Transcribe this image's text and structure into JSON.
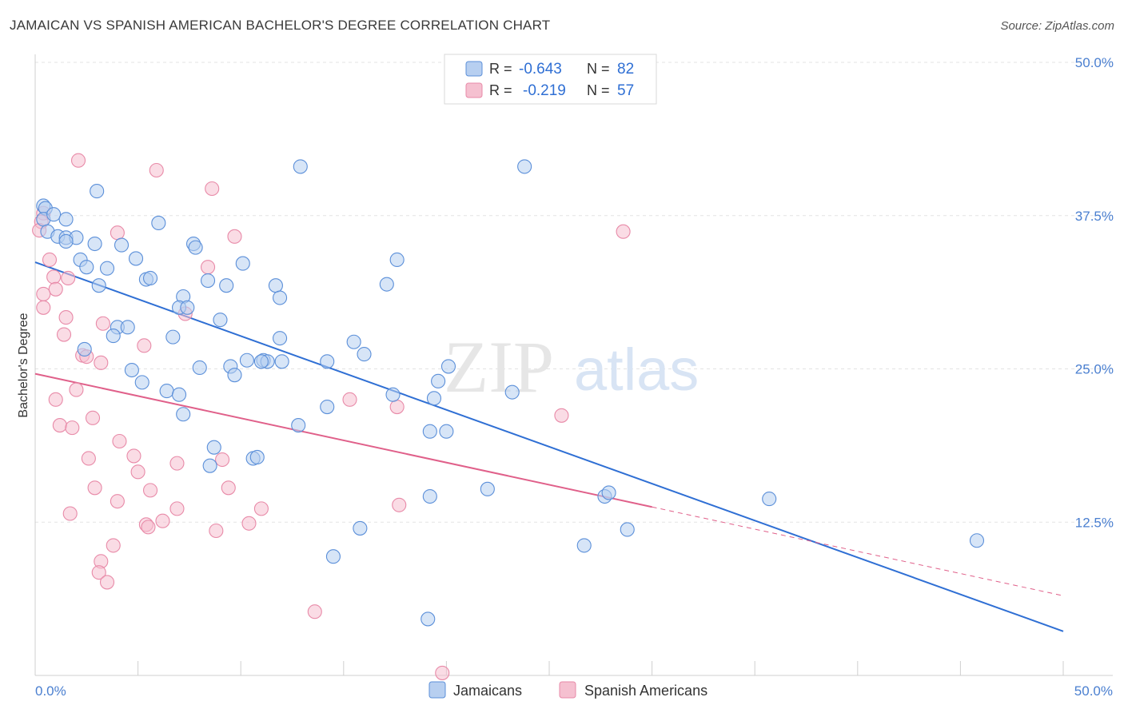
{
  "title": "JAMAICAN VS SPANISH AMERICAN BACHELOR'S DEGREE CORRELATION CHART",
  "source": "Source: ZipAtlas.com",
  "watermark": {
    "part1": "ZIP",
    "part2": "atlas"
  },
  "colors": {
    "blue": "#5b8fd9",
    "blue_fill": "#b7cff0",
    "blue_line": "#2f6fd4",
    "pink": "#e88aa8",
    "pink_fill": "#f5c0d0",
    "pink_line": "#e0608a",
    "axis_text": "#4a7fd0",
    "grid": "#e3e3e3"
  },
  "legend": {
    "rows": [
      {
        "r_label": "R =",
        "r_value": "-0.643",
        "n_label": "N =",
        "n_value": "82"
      },
      {
        "r_label": "R =",
        "r_value": "-0.219",
        "n_label": "N =",
        "n_value": "57"
      }
    ]
  },
  "bottom_legend": [
    {
      "label": "Jamaicans"
    },
    {
      "label": "Spanish Americans"
    }
  ],
  "chart_data": {
    "type": "scatter",
    "title": "JAMAICAN VS SPANISH AMERICAN BACHELOR'S DEGREE CORRELATION CHART",
    "xlabel": "",
    "ylabel": "Bachelor's Degree",
    "xlim": [
      0,
      50
    ],
    "ylim": [
      0,
      50
    ],
    "x_tick_labels": [
      "0.0%",
      "50.0%"
    ],
    "y_ticks": [
      12.5,
      25.0,
      37.5,
      50.0
    ],
    "y_tick_labels": [
      "12.5%",
      "25.0%",
      "37.5%",
      "50.0%"
    ],
    "grid": true,
    "legend_position": "top-center",
    "series": [
      {
        "name": "Jamaicans",
        "trend": {
          "x0": 0,
          "y0": 33.7,
          "x1": 50,
          "y1": 3.6,
          "solid_until": 50
        },
        "points": [
          [
            0.4,
            38.3
          ],
          [
            0.5,
            38.1
          ],
          [
            0.4,
            37.2
          ],
          [
            0.9,
            37.6
          ],
          [
            1.5,
            37.2
          ],
          [
            0.6,
            36.2
          ],
          [
            1.1,
            35.8
          ],
          [
            1.5,
            35.7
          ],
          [
            2.0,
            35.7
          ],
          [
            1.5,
            35.4
          ],
          [
            2.9,
            35.2
          ],
          [
            4.2,
            35.1
          ],
          [
            7.7,
            35.2
          ],
          [
            7.8,
            34.9
          ],
          [
            2.2,
            33.9
          ],
          [
            4.9,
            34.0
          ],
          [
            10.1,
            33.6
          ],
          [
            2.5,
            33.3
          ],
          [
            3.5,
            33.2
          ],
          [
            5.4,
            32.3
          ],
          [
            5.6,
            32.4
          ],
          [
            8.4,
            32.2
          ],
          [
            9.3,
            31.8
          ],
          [
            11.7,
            31.8
          ],
          [
            3.1,
            31.8
          ],
          [
            11.9,
            30.8
          ],
          [
            7.2,
            30.9
          ],
          [
            7.0,
            30.0
          ],
          [
            7.4,
            30.0
          ],
          [
            9.0,
            29.0
          ],
          [
            4.0,
            28.4
          ],
          [
            4.5,
            28.4
          ],
          [
            3.8,
            27.7
          ],
          [
            6.7,
            27.6
          ],
          [
            11.9,
            27.5
          ],
          [
            2.4,
            26.6
          ],
          [
            15.5,
            27.2
          ],
          [
            16.0,
            26.2
          ],
          [
            10.3,
            25.7
          ],
          [
            11.1,
            25.7
          ],
          [
            11.3,
            25.6
          ],
          [
            11.0,
            25.6
          ],
          [
            12.0,
            25.6
          ],
          [
            14.2,
            25.6
          ],
          [
            9.5,
            25.2
          ],
          [
            8.0,
            25.1
          ],
          [
            4.7,
            24.9
          ],
          [
            9.7,
            24.5
          ],
          [
            19.6,
            24.0
          ],
          [
            20.1,
            25.2
          ],
          [
            5.2,
            23.9
          ],
          [
            6.4,
            23.2
          ],
          [
            7.0,
            22.9
          ],
          [
            17.4,
            22.9
          ],
          [
            19.4,
            22.6
          ],
          [
            23.2,
            23.1
          ],
          [
            14.2,
            21.9
          ],
          [
            7.2,
            21.3
          ],
          [
            12.8,
            20.4
          ],
          [
            19.2,
            19.9
          ],
          [
            20.0,
            19.9
          ],
          [
            8.7,
            18.6
          ],
          [
            10.6,
            17.7
          ],
          [
            10.8,
            17.8
          ],
          [
            8.5,
            17.1
          ],
          [
            22.0,
            15.2
          ],
          [
            19.2,
            14.6
          ],
          [
            27.7,
            14.6
          ],
          [
            27.9,
            14.9
          ],
          [
            35.7,
            14.4
          ],
          [
            15.8,
            12.0
          ],
          [
            28.8,
            11.9
          ],
          [
            26.7,
            10.6
          ],
          [
            14.5,
            9.7
          ],
          [
            45.8,
            11.0
          ],
          [
            19.1,
            4.6
          ],
          [
            12.9,
            41.5
          ],
          [
            23.8,
            41.5
          ],
          [
            6.0,
            36.9
          ],
          [
            3.0,
            39.5
          ],
          [
            17.1,
            31.9
          ],
          [
            17.6,
            33.9
          ]
        ]
      },
      {
        "name": "Spanish Americans",
        "trend": {
          "x0": 0,
          "y0": 24.6,
          "x1": 50,
          "y1": 6.5,
          "solid_until": 30
        },
        "points": [
          [
            0.4,
            37.7
          ],
          [
            0.3,
            37.0
          ],
          [
            0.2,
            36.3
          ],
          [
            2.1,
            42.0
          ],
          [
            5.9,
            41.2
          ],
          [
            8.6,
            39.7
          ],
          [
            4.0,
            36.1
          ],
          [
            9.7,
            35.8
          ],
          [
            0.7,
            33.9
          ],
          [
            8.4,
            33.3
          ],
          [
            0.9,
            32.5
          ],
          [
            1.6,
            32.4
          ],
          [
            1.0,
            31.5
          ],
          [
            0.4,
            31.1
          ],
          [
            0.4,
            30.0
          ],
          [
            7.3,
            29.5
          ],
          [
            1.5,
            29.2
          ],
          [
            3.3,
            28.7
          ],
          [
            1.4,
            27.8
          ],
          [
            5.3,
            26.9
          ],
          [
            2.3,
            26.1
          ],
          [
            2.5,
            26.0
          ],
          [
            3.2,
            25.5
          ],
          [
            1.0,
            22.5
          ],
          [
            2.0,
            23.3
          ],
          [
            15.3,
            22.5
          ],
          [
            17.6,
            21.9
          ],
          [
            25.6,
            21.2
          ],
          [
            2.8,
            21.0
          ],
          [
            1.2,
            20.4
          ],
          [
            1.8,
            20.2
          ],
          [
            4.1,
            19.1
          ],
          [
            2.6,
            17.7
          ],
          [
            4.8,
            17.9
          ],
          [
            6.9,
            17.3
          ],
          [
            9.1,
            17.6
          ],
          [
            5.0,
            16.6
          ],
          [
            2.9,
            15.3
          ],
          [
            5.6,
            15.1
          ],
          [
            9.4,
            15.3
          ],
          [
            4.0,
            14.2
          ],
          [
            6.9,
            13.6
          ],
          [
            11.0,
            13.6
          ],
          [
            17.7,
            13.9
          ],
          [
            1.7,
            13.2
          ],
          [
            6.2,
            12.6
          ],
          [
            5.4,
            12.3
          ],
          [
            5.5,
            12.1
          ],
          [
            8.8,
            11.8
          ],
          [
            10.4,
            12.4
          ],
          [
            3.8,
            10.6
          ],
          [
            3.2,
            9.3
          ],
          [
            3.1,
            8.4
          ],
          [
            3.5,
            7.6
          ],
          [
            13.6,
            5.2
          ],
          [
            19.8,
            0.2
          ],
          [
            28.6,
            36.2
          ]
        ]
      }
    ]
  }
}
